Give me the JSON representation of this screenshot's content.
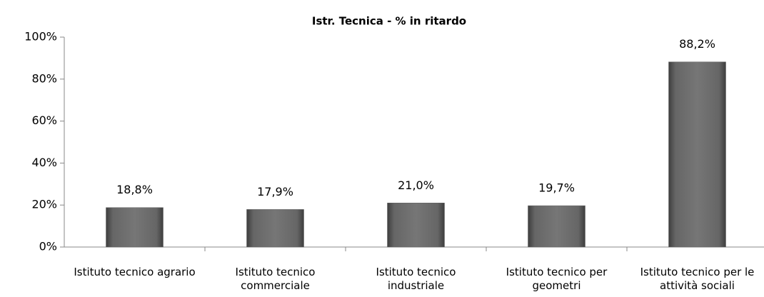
{
  "chart_data": {
    "type": "bar",
    "title": "Istr. Tecnica - % in ritardo",
    "categories": [
      "Istituto tecnico agrario",
      "Istituto tecnico commerciale",
      "Istituto tecnico industriale",
      "Istituto tecnico per geometri",
      "Istituto tecnico per le attività sociali"
    ],
    "values": [
      18.8,
      17.9,
      21.0,
      19.7,
      88.2
    ],
    "value_labels": [
      "18,8%",
      "17,9%",
      "21,0%",
      "19,7%",
      "88,2%"
    ],
    "color": "#606060",
    "ylim": [
      0,
      100
    ],
    "yticks": [
      {
        "value": 0,
        "label": "0%"
      },
      {
        "value": 20,
        "label": "20%"
      },
      {
        "value": 40,
        "label": "40%"
      },
      {
        "value": 60,
        "label": "60%"
      },
      {
        "value": 80,
        "label": "80%"
      },
      {
        "value": 100,
        "label": "100%"
      }
    ],
    "grid": false
  }
}
